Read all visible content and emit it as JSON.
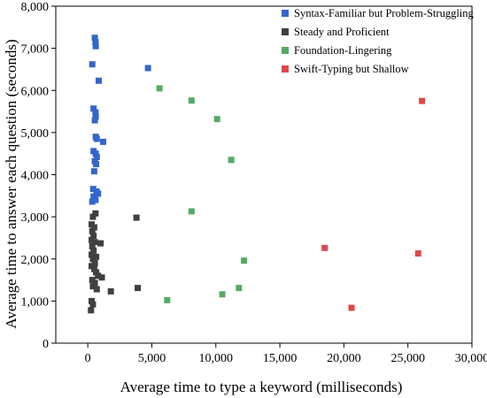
{
  "chart_data": {
    "type": "scatter",
    "xlabel": "Average time to type a keyword (milliseconds)",
    "ylabel": "Average time to answer each question (seconds)",
    "xlim": [
      -2500,
      30000
    ],
    "ylim": [
      0,
      8000
    ],
    "xticks": [
      "0",
      "5,000",
      "10,000",
      "15,000",
      "20,000",
      "25,000",
      "30,000"
    ],
    "yticks": [
      "0",
      "1,000",
      "2,000",
      "3,000",
      "4,000",
      "5,000",
      "6,000",
      "7,000",
      "8,000"
    ],
    "grid": false,
    "legend_position": "top-right",
    "series": [
      {
        "name": "Syntax-Familiar but Problem-Struggling",
        "color": "#3366cc",
        "points": [
          [
            550,
            7250
          ],
          [
            600,
            7150
          ],
          [
            620,
            7050
          ],
          [
            350,
            6620
          ],
          [
            4700,
            6530
          ],
          [
            850,
            6230
          ],
          [
            450,
            5570
          ],
          [
            600,
            5480
          ],
          [
            620,
            5380
          ],
          [
            550,
            5290
          ],
          [
            620,
            4900
          ],
          [
            700,
            4850
          ],
          [
            1200,
            4780
          ],
          [
            450,
            4560
          ],
          [
            620,
            4500
          ],
          [
            700,
            4420
          ],
          [
            550,
            4320
          ],
          [
            650,
            4250
          ],
          [
            500,
            4080
          ],
          [
            420,
            3660
          ],
          [
            680,
            3600
          ],
          [
            800,
            3550
          ],
          [
            450,
            3480
          ],
          [
            600,
            3400
          ],
          [
            350,
            3360
          ]
        ]
      },
      {
        "name": "Steady and Proficient",
        "color": "#404040",
        "points": [
          [
            600,
            3080
          ],
          [
            400,
            3000
          ],
          [
            3800,
            2980
          ],
          [
            300,
            2820
          ],
          [
            500,
            2750
          ],
          [
            350,
            2660
          ],
          [
            450,
            2550
          ],
          [
            300,
            2450
          ],
          [
            550,
            2400
          ],
          [
            1000,
            2370
          ],
          [
            350,
            2300
          ],
          [
            450,
            2200
          ],
          [
            300,
            2100
          ],
          [
            650,
            2050
          ],
          [
            400,
            2000
          ],
          [
            550,
            1900
          ],
          [
            300,
            1830
          ],
          [
            500,
            1760
          ],
          [
            650,
            1680
          ],
          [
            800,
            1600
          ],
          [
            1100,
            1560
          ],
          [
            350,
            1500
          ],
          [
            550,
            1430
          ],
          [
            400,
            1350
          ],
          [
            700,
            1280
          ],
          [
            3900,
            1310
          ],
          [
            1800,
            1230
          ],
          [
            300,
            1000
          ],
          [
            400,
            920
          ],
          [
            250,
            780
          ]
        ]
      },
      {
        "name": "Foundation-Lingering",
        "color": "#55aa66",
        "points": [
          [
            5600,
            6050
          ],
          [
            8100,
            5760
          ],
          [
            10100,
            5320
          ],
          [
            11200,
            4350
          ],
          [
            8100,
            3130
          ],
          [
            12200,
            1960
          ],
          [
            11800,
            1310
          ],
          [
            10500,
            1160
          ],
          [
            6200,
            1020
          ]
        ]
      },
      {
        "name": "Swift-Typing but Shallow",
        "color": "#e04848",
        "points": [
          [
            26100,
            5750
          ],
          [
            18500,
            2260
          ],
          [
            25800,
            2130
          ],
          [
            20600,
            840
          ]
        ]
      }
    ]
  }
}
